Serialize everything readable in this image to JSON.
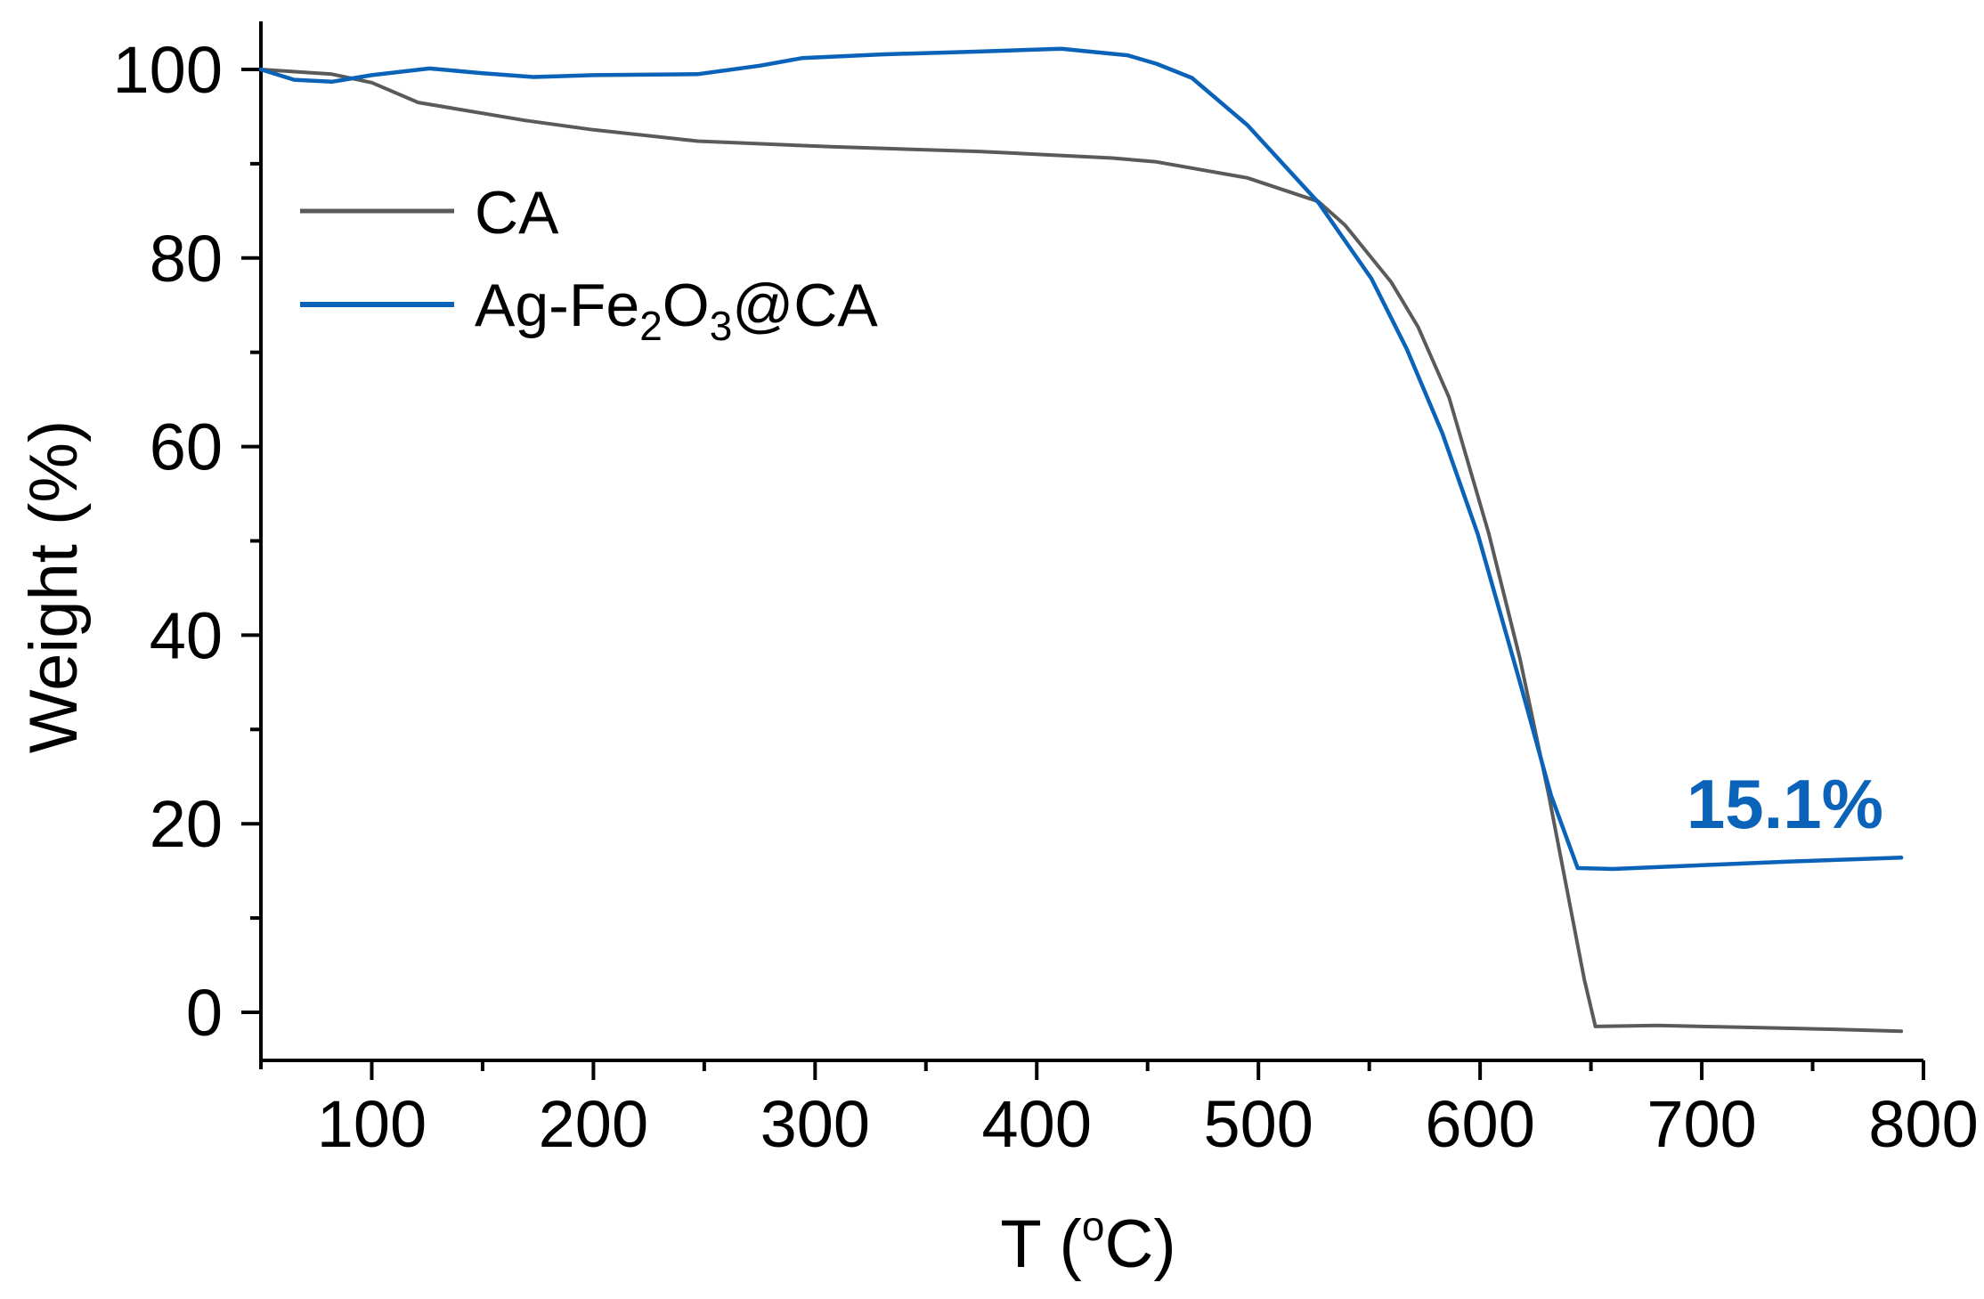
{
  "chart_data": {
    "type": "line",
    "title": "",
    "xlabel": "T (°C)",
    "xlabel_parts": {
      "main": "T (",
      "sup": "o",
      "unit": "C)"
    },
    "ylabel": "Weight (%)",
    "xlim": [
      50,
      800
    ],
    "ylim": [
      -5.1,
      105
    ],
    "x_ticks": [
      100,
      200,
      300,
      400,
      500,
      600,
      700,
      800
    ],
    "x_minor_ticks": [
      150,
      250,
      350,
      450,
      550,
      650,
      750
    ],
    "y_ticks": [
      0,
      20,
      40,
      60,
      80,
      100
    ],
    "y_minor_ticks": [
      10,
      30,
      50,
      70,
      90
    ],
    "grid": false,
    "legend_position": "upper-left",
    "series": [
      {
        "name": "CA",
        "color": "#5a5a5a",
        "x": [
          50,
          82,
          100,
          121,
          169,
          200,
          247,
          307,
          374,
          434,
          454,
          495,
          527,
          539,
          560,
          572,
          586,
          604,
          618,
          631,
          647,
          652,
          680,
          720,
          760,
          790
        ],
        "y": [
          100,
          99.5,
          98.6,
          96.5,
          94.6,
          93.6,
          92.4,
          91.8,
          91.3,
          90.6,
          90.2,
          88.5,
          86.0,
          83.5,
          77.4,
          72.7,
          65.2,
          50.7,
          37.5,
          23.0,
          3.5,
          -1.5,
          -1.4,
          -1.6,
          -1.8,
          -2.0
        ]
      },
      {
        "name": "Ag-Fe2O3@CA",
        "legend_parts": {
          "a": "Ag-Fe",
          "s1": "2",
          "b": "O",
          "s2": "3",
          "c": "@CA"
        },
        "color": "#0a63b8",
        "x": [
          50,
          65,
          82,
          100,
          126,
          150,
          173,
          200,
          247,
          275,
          294,
          330,
          374,
          411,
          441,
          454,
          470,
          495,
          527,
          551,
          567,
          583,
          599,
          618,
          632,
          644,
          660,
          700,
          740,
          790
        ],
        "y": [
          100,
          98.9,
          98.7,
          99.4,
          100.1,
          99.6,
          99.2,
          99.4,
          99.5,
          100.4,
          101.2,
          101.6,
          101.9,
          102.2,
          101.5,
          100.6,
          99.1,
          94.1,
          85.9,
          77.8,
          70.3,
          61.4,
          50.7,
          35.0,
          23.0,
          15.3,
          15.2,
          15.6,
          16.0,
          16.4
        ]
      }
    ],
    "annotations": [
      {
        "text": "15.1%",
        "x": 755,
        "y": 20.5,
        "color": "#0a63b8",
        "bold": true
      }
    ]
  }
}
